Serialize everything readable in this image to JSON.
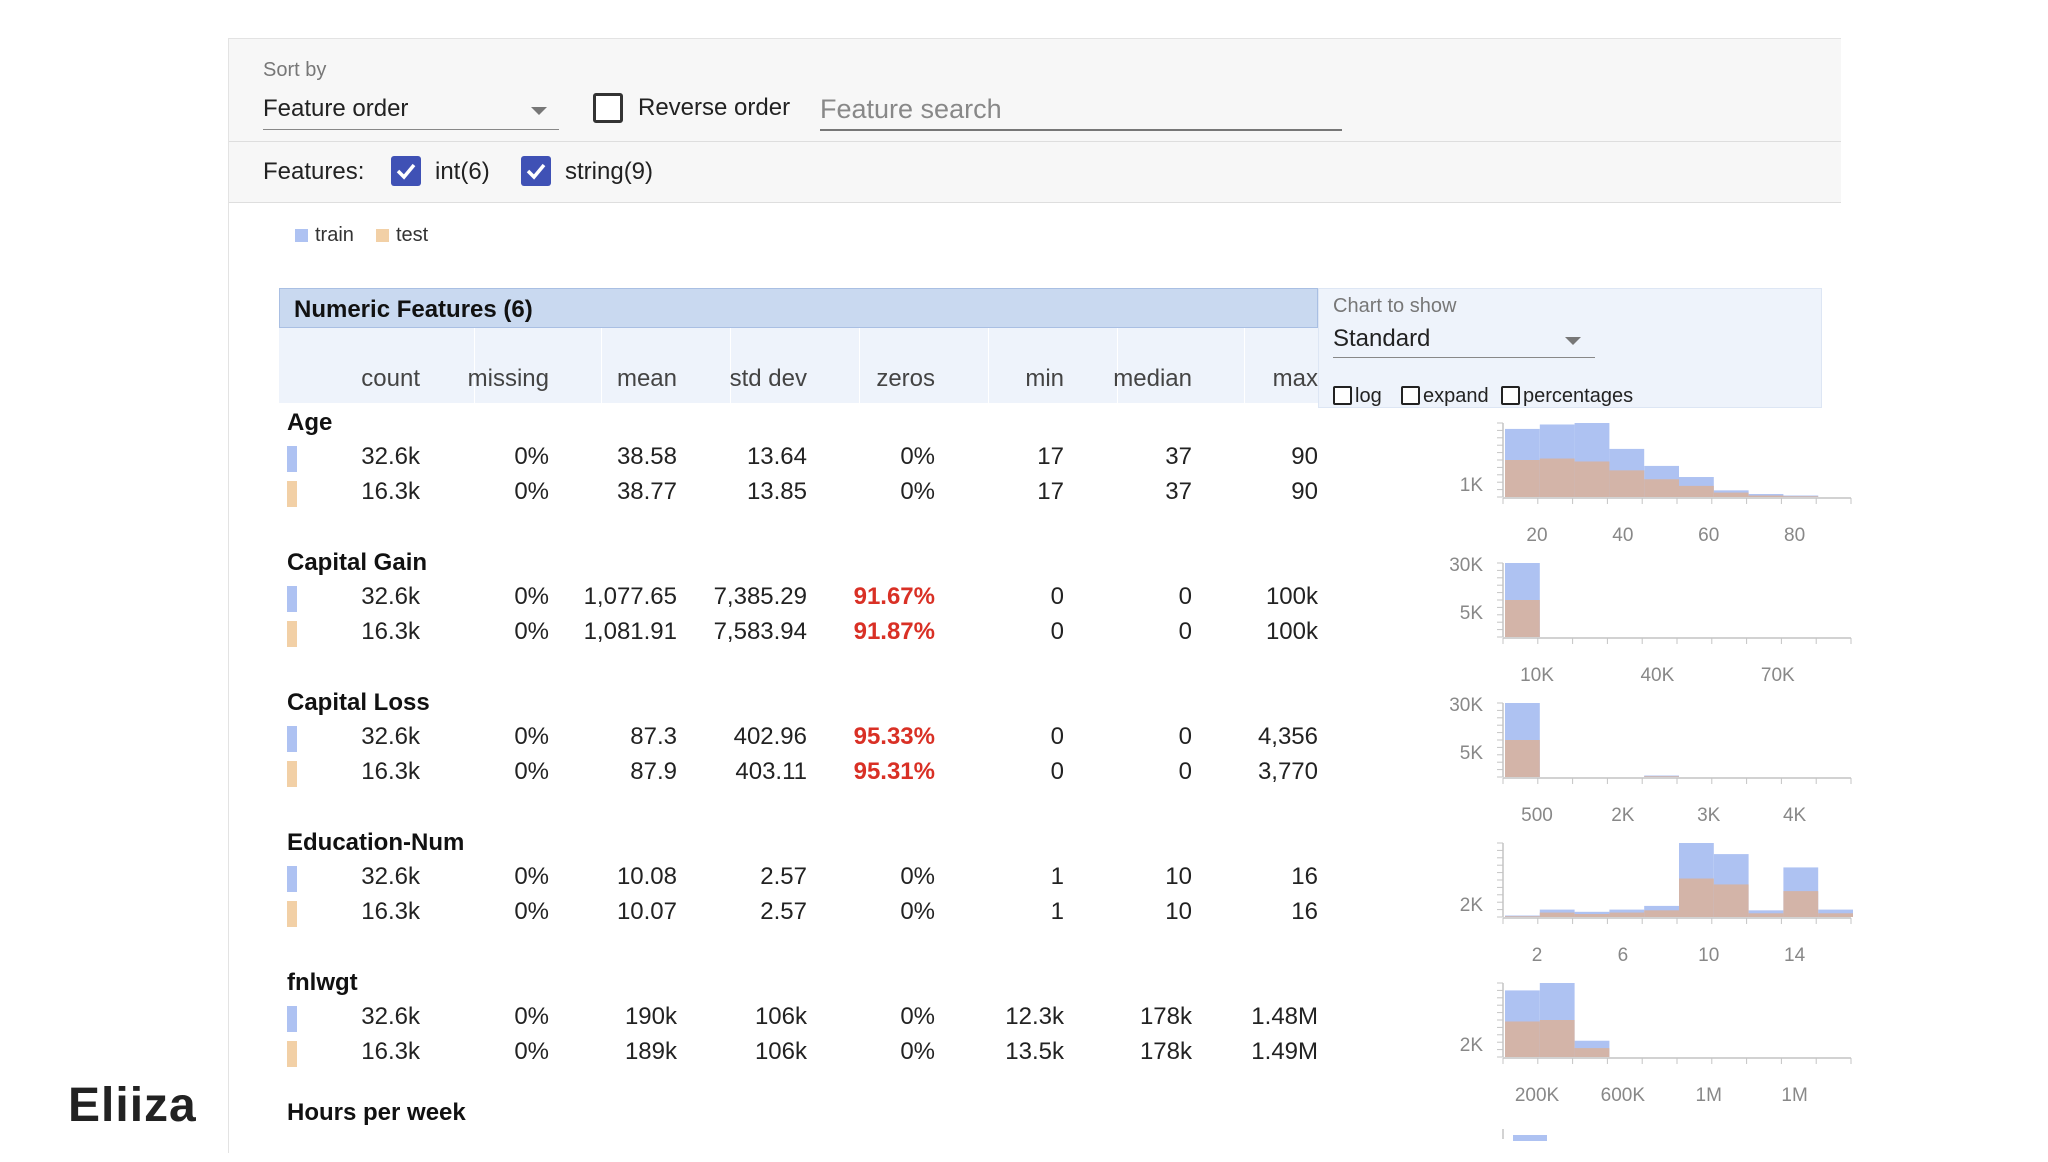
{
  "toolbar": {
    "sort_by_label": "Sort by",
    "sort_by_value": "Feature order",
    "reverse_order_label": "Reverse order",
    "search_placeholder": "Feature search"
  },
  "features_filter": {
    "label": "Features:",
    "options": [
      {
        "label": "int(6)",
        "checked": true
      },
      {
        "label": "string(9)",
        "checked": true
      }
    ]
  },
  "legend": {
    "items": [
      {
        "label": "train",
        "color": "#aec2f2"
      },
      {
        "label": "test",
        "color": "#f2d0a6"
      }
    ]
  },
  "section": {
    "title": "Numeric Features (6)",
    "columns": [
      "count",
      "missing",
      "mean",
      "std dev",
      "zeros",
      "min",
      "median",
      "max"
    ]
  },
  "chart_options": {
    "label": "Chart to show",
    "value": "Standard",
    "toggles": [
      "log",
      "expand",
      "percentages"
    ]
  },
  "colors": {
    "train": "#aec2f2",
    "test": "#f2d0a6",
    "test_overlap": "#d3b4a8",
    "highlight": "#d93025",
    "header_band": "#c9d9f0"
  },
  "features": [
    {
      "name": "Age",
      "rows": [
        {
          "split": "train",
          "values": [
            "32.6k",
            "0%",
            "38.58",
            "13.64",
            "0%",
            "17",
            "37",
            "90"
          ],
          "zeros_flag": false
        },
        {
          "split": "test",
          "values": [
            "16.3k",
            "0%",
            "38.77",
            "13.85",
            "0%",
            "17",
            "37",
            "90"
          ],
          "zeros_flag": false
        }
      ],
      "hist": {
        "y_labels": [
          "1K"
        ],
        "x_labels": [
          "20",
          "40",
          "60",
          "80"
        ],
        "train": [
          0.92,
          0.98,
          1.0,
          0.65,
          0.42,
          0.27,
          0.09,
          0.04,
          0.02,
          0.0
        ],
        "test": [
          0.5,
          0.52,
          0.48,
          0.36,
          0.24,
          0.15,
          0.06,
          0.02,
          0.01,
          0.0
        ]
      }
    },
    {
      "name": "Capital Gain",
      "rows": [
        {
          "split": "train",
          "values": [
            "32.6k",
            "0%",
            "1,077.65",
            "7,385.29",
            "91.67%",
            "0",
            "0",
            "100k"
          ],
          "zeros_flag": true
        },
        {
          "split": "test",
          "values": [
            "16.3k",
            "0%",
            "1,081.91",
            "7,583.94",
            "91.87%",
            "0",
            "0",
            "100k"
          ],
          "zeros_flag": true
        }
      ],
      "hist": {
        "y_labels": [
          "30K",
          "5K"
        ],
        "x_labels": [
          "10K",
          "40K",
          "70K"
        ],
        "train": [
          1.0,
          0.0,
          0.0,
          0.0,
          0.0,
          0.0,
          0.0,
          0.0,
          0.0,
          0.0
        ],
        "test": [
          0.5,
          0.0,
          0.0,
          0.0,
          0.0,
          0.0,
          0.0,
          0.0,
          0.0,
          0.0
        ]
      }
    },
    {
      "name": "Capital Loss",
      "rows": [
        {
          "split": "train",
          "values": [
            "32.6k",
            "0%",
            "87.3",
            "402.96",
            "95.33%",
            "0",
            "0",
            "4,356"
          ],
          "zeros_flag": true
        },
        {
          "split": "test",
          "values": [
            "16.3k",
            "0%",
            "87.9",
            "403.11",
            "95.31%",
            "0",
            "0",
            "3,770"
          ],
          "zeros_flag": true
        }
      ],
      "hist": {
        "y_labels": [
          "30K",
          "5K"
        ],
        "x_labels": [
          "500",
          "2K",
          "3K",
          "4K"
        ],
        "train": [
          1.0,
          0.0,
          0.0,
          0.0,
          0.02,
          0.0,
          0.0,
          0.0,
          0.0,
          0.0
        ],
        "test": [
          0.5,
          0.0,
          0.0,
          0.0,
          0.01,
          0.0,
          0.0,
          0.0,
          0.0,
          0.0
        ]
      }
    },
    {
      "name": "Education-Num",
      "rows": [
        {
          "split": "train",
          "values": [
            "32.6k",
            "0%",
            "10.08",
            "2.57",
            "0%",
            "1",
            "10",
            "16"
          ],
          "zeros_flag": false
        },
        {
          "split": "test",
          "values": [
            "16.3k",
            "0%",
            "10.07",
            "2.57",
            "0%",
            "1",
            "10",
            "16"
          ],
          "zeros_flag": false
        }
      ],
      "hist": {
        "y_labels": [
          "2K"
        ],
        "x_labels": [
          "2",
          "6",
          "10",
          "14"
        ],
        "train": [
          0.02,
          0.1,
          0.07,
          0.1,
          0.15,
          1.0,
          0.85,
          0.09,
          0.67,
          0.1
        ],
        "test": [
          0.01,
          0.06,
          0.04,
          0.06,
          0.09,
          0.52,
          0.44,
          0.05,
          0.35,
          0.05
        ]
      }
    },
    {
      "name": "fnlwgt",
      "rows": [
        {
          "split": "train",
          "values": [
            "32.6k",
            "0%",
            "190k",
            "106k",
            "0%",
            "12.3k",
            "178k",
            "1.48M"
          ],
          "zeros_flag": false
        },
        {
          "split": "test",
          "values": [
            "16.3k",
            "0%",
            "189k",
            "106k",
            "0%",
            "13.5k",
            "178k",
            "1.49M"
          ],
          "zeros_flag": false
        }
      ],
      "hist": {
        "y_labels": [
          "2K"
        ],
        "x_labels": [
          "200K",
          "600K",
          "1M",
          "1M"
        ],
        "train": [
          0.9,
          1.0,
          0.22,
          0.0,
          0.0,
          0.0,
          0.0,
          0.0,
          0.0,
          0.0
        ],
        "test": [
          0.48,
          0.5,
          0.12,
          0.0,
          0.0,
          0.0,
          0.0,
          0.0,
          0.0,
          0.0
        ]
      }
    }
  ],
  "partial_feature": {
    "name": "Hours per week"
  },
  "brand": {
    "logo_text": "Eliiza"
  }
}
